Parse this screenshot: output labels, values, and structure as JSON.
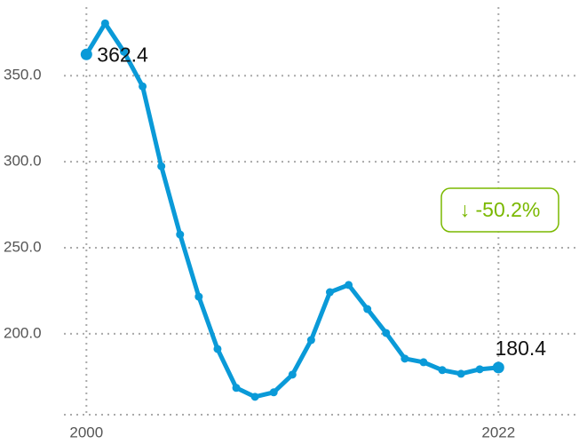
{
  "chart_data": {
    "type": "line",
    "x": [
      2000,
      2001,
      2002,
      2003,
      2004,
      2005,
      2006,
      2007,
      2008,
      2009,
      2010,
      2011,
      2012,
      2013,
      2014,
      2015,
      2016,
      2017,
      2018,
      2019,
      2020,
      2021,
      2022
    ],
    "series": [
      {
        "color": "#0a9ad8",
        "values": [
          362.4,
          380.4,
          364.0,
          343.8,
          297.4,
          257.7,
          221.6,
          191.2,
          168.6,
          163.4,
          166.0,
          176.3,
          196.4,
          224.2,
          228.4,
          214.4,
          200.5,
          185.6,
          183.5,
          178.9,
          176.8,
          179.4,
          180.4
        ],
        "point_labels": {
          "first": "362.4",
          "last": "180.4"
        }
      }
    ],
    "change_label": "↓ -50.2%",
    "change_color": "#7ab800",
    "xlim": [
      1998.8,
      2026.3
    ],
    "xticks": [
      2000,
      2022
    ],
    "ylim": [
      153,
      394
    ],
    "yticks": [
      {
        "value": 200,
        "label": "200.0"
      },
      {
        "value": 250,
        "label": "250.0"
      },
      {
        "value": 300,
        "label": "300.0"
      },
      {
        "value": 350,
        "label": "350.0"
      }
    ],
    "grid": true
  }
}
